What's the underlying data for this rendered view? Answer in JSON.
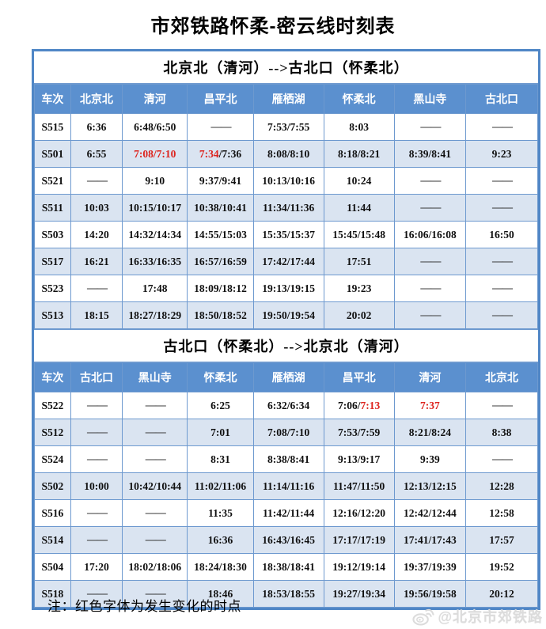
{
  "title": "市郊铁路怀柔-密云线时刻表",
  "note": "注：红色字体为发生变化的时点",
  "watermark": {
    "handle": "@北京市郊铁路"
  },
  "colors": {
    "header_bg": "#5b90cf",
    "band_bg": "#dae4f1",
    "outer_border": "#4f86c6",
    "cell_border": "#6d99cf",
    "changed_time_red": "#dd231d"
  },
  "tables": [
    {
      "direction": "北京北（清河）-->古北口（怀柔北）",
      "columns": [
        "车次",
        "北京北",
        "清河",
        "昌平北",
        "雁栖湖",
        "怀柔北",
        "黑山寺",
        "古北口"
      ],
      "rows": [
        {
          "train": "S515",
          "times": [
            "6:36",
            "6:48/6:50",
            "——",
            "7:53/7:55",
            "8:03",
            "——",
            "——"
          ]
        },
        {
          "train": "S501",
          "times": [
            "6:55",
            {
              "parts": [
                {
                  "text": "7:08/7:10",
                  "red": true
                }
              ]
            },
            {
              "parts": [
                {
                  "text": "7:34",
                  "red": true
                },
                {
                  "text": "/7:36",
                  "red": false
                }
              ]
            },
            "8:08/8:10",
            "8:18/8:21",
            "8:39/8:41",
            "9:23"
          ]
        },
        {
          "train": "S521",
          "times": [
            "——",
            "9:10",
            "9:37/9:41",
            "10:13/10:16",
            "10:24",
            "——",
            "——"
          ]
        },
        {
          "train": "S511",
          "times": [
            "10:03",
            "10:15/10:17",
            "10:38/10:41",
            "11:34/11:36",
            "11:44",
            "——",
            "——"
          ]
        },
        {
          "train": "S503",
          "times": [
            "14:20",
            "14:32/14:34",
            "14:55/15:03",
            "15:35/15:37",
            "15:45/15:48",
            "16:06/16:08",
            "16:50"
          ]
        },
        {
          "train": "S517",
          "times": [
            "16:21",
            "16:33/16:35",
            "16:57/16:59",
            "17:42/17:44",
            "17:51",
            "——",
            "——"
          ]
        },
        {
          "train": "S523",
          "times": [
            "——",
            "17:48",
            "18:09/18:12",
            "19:13/19:15",
            "19:23",
            "——",
            "——"
          ]
        },
        {
          "train": "S513",
          "times": [
            "18:15",
            "18:27/18:29",
            "18:50/18:52",
            "19:50/19:54",
            "20:02",
            "——",
            "——"
          ]
        }
      ]
    },
    {
      "direction": "古北口（怀柔北）-->北京北（清河）",
      "columns": [
        "车次",
        "古北口",
        "黑山寺",
        "怀柔北",
        "雁栖湖",
        "昌平北",
        "清河",
        "北京北"
      ],
      "rows": [
        {
          "train": "S522",
          "times": [
            "——",
            "——",
            "6:25",
            "6:32/6:34",
            {
              "parts": [
                {
                  "text": "7:06/",
                  "red": false
                },
                {
                  "text": "7:13",
                  "red": true
                }
              ]
            },
            {
              "parts": [
                {
                  "text": "7:37",
                  "red": true
                }
              ]
            },
            "——"
          ]
        },
        {
          "train": "S512",
          "times": [
            "——",
            "——",
            "7:01",
            "7:08/7:10",
            "7:53/7:59",
            "8:21/8:24",
            "8:38"
          ]
        },
        {
          "train": "S524",
          "times": [
            "——",
            "——",
            "8:31",
            "8:38/8:41",
            "9:13/9:17",
            "9:39",
            "——"
          ]
        },
        {
          "train": "S502",
          "times": [
            "10:00",
            "10:42/10:44",
            "11:02/11:06",
            "11:14/11:16",
            "11:47/11:50",
            "12:13/12:15",
            "12:28"
          ]
        },
        {
          "train": "S516",
          "times": [
            "——",
            "——",
            "11:35",
            "11:42/11:44",
            "12:16/12:20",
            "12:42/12:44",
            "12:58"
          ]
        },
        {
          "train": "S514",
          "times": [
            "——",
            "——",
            "16:36",
            "16:43/16:45",
            "17:17/17:19",
            "17:41/17:43",
            "17:57"
          ]
        },
        {
          "train": "S504",
          "times": [
            "17:20",
            "18:02/18:06",
            "18:24/18:30",
            "18:38/18:41",
            "19:12/19:14",
            "19:37/19:39",
            "19:52"
          ]
        },
        {
          "train": "S518",
          "times": [
            "——",
            "——",
            "18:46",
            "18:53/18:55",
            "19:27/19:34",
            "19:56/19:58",
            "20:12"
          ]
        }
      ]
    }
  ]
}
